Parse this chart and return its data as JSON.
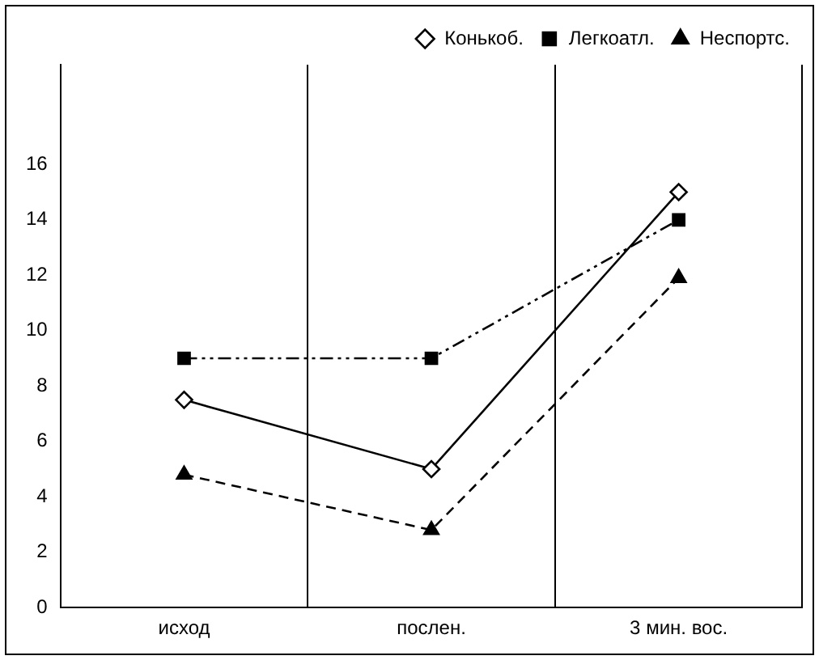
{
  "chart_data": {
    "type": "line",
    "categories": [
      "исход",
      "послен.",
      "3 мин. вос."
    ],
    "series": [
      {
        "name": "Конькоб.",
        "color": "#000000",
        "values": [
          7.5,
          5,
          15
        ],
        "marker": "diamond",
        "line_style": "solid"
      },
      {
        "name": "Легкоатл.",
        "color": "#000000",
        "values": [
          9,
          9,
          14
        ],
        "marker": "square",
        "line_style": "dashdotdot"
      },
      {
        "name": "Неспортс.",
        "color": "#000000",
        "values": [
          4.8,
          2.8,
          11.9
        ],
        "marker": "triangle",
        "line_style": "dashed"
      }
    ],
    "ylim": [
      0,
      19.6
    ],
    "yticks": [
      0,
      2,
      4,
      6,
      8,
      10,
      12,
      14,
      16
    ],
    "grid": "x",
    "legend": "top right"
  }
}
